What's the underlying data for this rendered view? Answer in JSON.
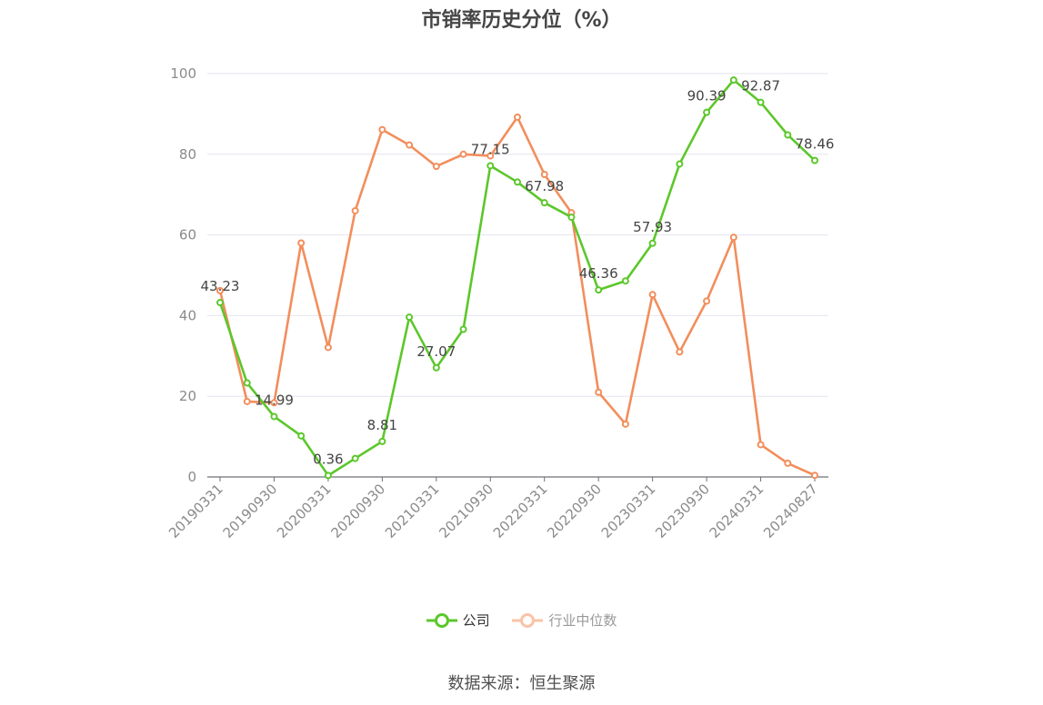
{
  "chart_data": {
    "type": "line",
    "title": "市销率历史分位（%）",
    "ylim": [
      0,
      100
    ],
    "yticks": [
      0,
      20,
      40,
      60,
      80,
      100
    ],
    "x": [
      "20190331",
      "20190630",
      "20190930",
      "20191231",
      "20200331",
      "20200630",
      "20200930",
      "20201231",
      "20210331",
      "20210630",
      "20210930",
      "20211231",
      "20220331",
      "20220630",
      "20220930",
      "20221231",
      "20230331",
      "20230630",
      "20230930",
      "20231231",
      "20240331",
      "20240630",
      "20240827"
    ],
    "xtick_labels": [
      "20190331",
      "20190930",
      "20200331",
      "20200930",
      "20210331",
      "20210930",
      "20220331",
      "20220930",
      "20230331",
      "20230930",
      "20240331",
      "20240827"
    ],
    "series": [
      {
        "name": "公司",
        "color": "#5cc72b",
        "values": [
          43.23,
          23.3,
          14.99,
          10.2,
          0.36,
          4.6,
          8.81,
          39.6,
          27.07,
          36.6,
          77.15,
          73.1,
          67.98,
          64.4,
          46.36,
          48.6,
          57.93,
          77.6,
          90.39,
          98.4,
          92.87,
          84.8,
          78.46
        ]
      },
      {
        "name": "行业中位数",
        "color": "#f28e5c",
        "values": [
          46.2,
          18.7,
          18.4,
          58.0,
          32.1,
          66.0,
          86.1,
          82.3,
          77.0,
          80.0,
          79.6,
          89.2,
          75.0,
          65.5,
          21.0,
          13.1,
          45.2,
          31.0,
          43.6,
          59.4,
          8.0,
          3.4,
          0.4
        ]
      }
    ],
    "data_labels": [
      {
        "index": 0,
        "text": "43.23"
      },
      {
        "index": 2,
        "text": "14.99"
      },
      {
        "index": 4,
        "text": "0.36"
      },
      {
        "index": 6,
        "text": "8.81"
      },
      {
        "index": 8,
        "text": "27.07"
      },
      {
        "index": 10,
        "text": "77.15"
      },
      {
        "index": 12,
        "text": "67.98"
      },
      {
        "index": 14,
        "text": "46.36"
      },
      {
        "index": 16,
        "text": "57.93"
      },
      {
        "index": 18,
        "text": "90.39"
      },
      {
        "index": 20,
        "text": "92.87"
      },
      {
        "index": 22,
        "text": "78.46"
      }
    ],
    "grid": true,
    "legend_position": "bottom"
  },
  "source_text": "数据来源：恒生聚源"
}
